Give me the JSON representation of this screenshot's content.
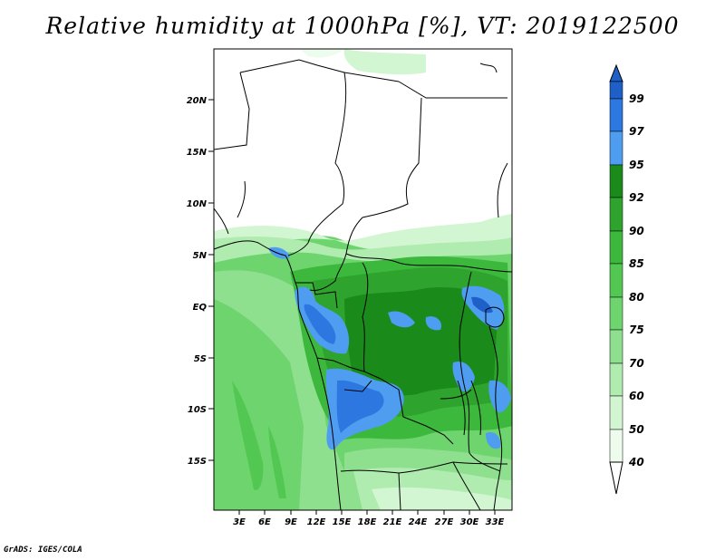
{
  "title": "Relative humidity at 1000hPa [%], VT: 2019122500",
  "credit": "GrADS: IGES/COLA",
  "map": {
    "lat_labels": [
      "20N",
      "15N",
      "10N",
      "5N",
      "EQ",
      "5S",
      "10S",
      "15S"
    ],
    "lon_labels": [
      "3E",
      "6E",
      "9E",
      "12E",
      "15E",
      "18E",
      "21E",
      "24E",
      "27E",
      "30E",
      "33E"
    ]
  },
  "colorbar": {
    "labels": [
      "99",
      "97",
      "95",
      "92",
      "90",
      "85",
      "80",
      "75",
      "70",
      "60",
      "50",
      "40"
    ],
    "colors": {
      "gt99": "#1e5fc8",
      "97-99": "#2c78e0",
      "95-97": "#4f9df0",
      "92-95": "#1a8a1a",
      "90-92": "#2ea32e",
      "85-90": "#3cb83c",
      "80-85": "#52c852",
      "75-80": "#6ed46e",
      "70-75": "#8edf8e",
      "60-70": "#b0ebb0",
      "50-60": "#d2f5d2",
      "40-50": "#edfced",
      "lt40": "#ffffff"
    }
  }
}
